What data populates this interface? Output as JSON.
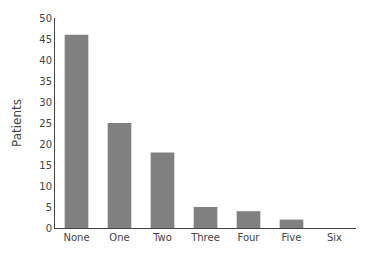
{
  "chart_data": {
    "type": "bar",
    "categories": [
      "None",
      "One",
      "Two",
      "Three",
      "Four",
      "Five",
      "Six"
    ],
    "values": [
      46,
      25,
      18,
      5,
      4,
      2,
      0
    ],
    "color": "#808080",
    "ylabel": "Patients",
    "ylim": [
      0,
      50
    ],
    "yticks": [
      0,
      5,
      10,
      15,
      20,
      25,
      30,
      35,
      40,
      45,
      50
    ],
    "grid": false
  }
}
